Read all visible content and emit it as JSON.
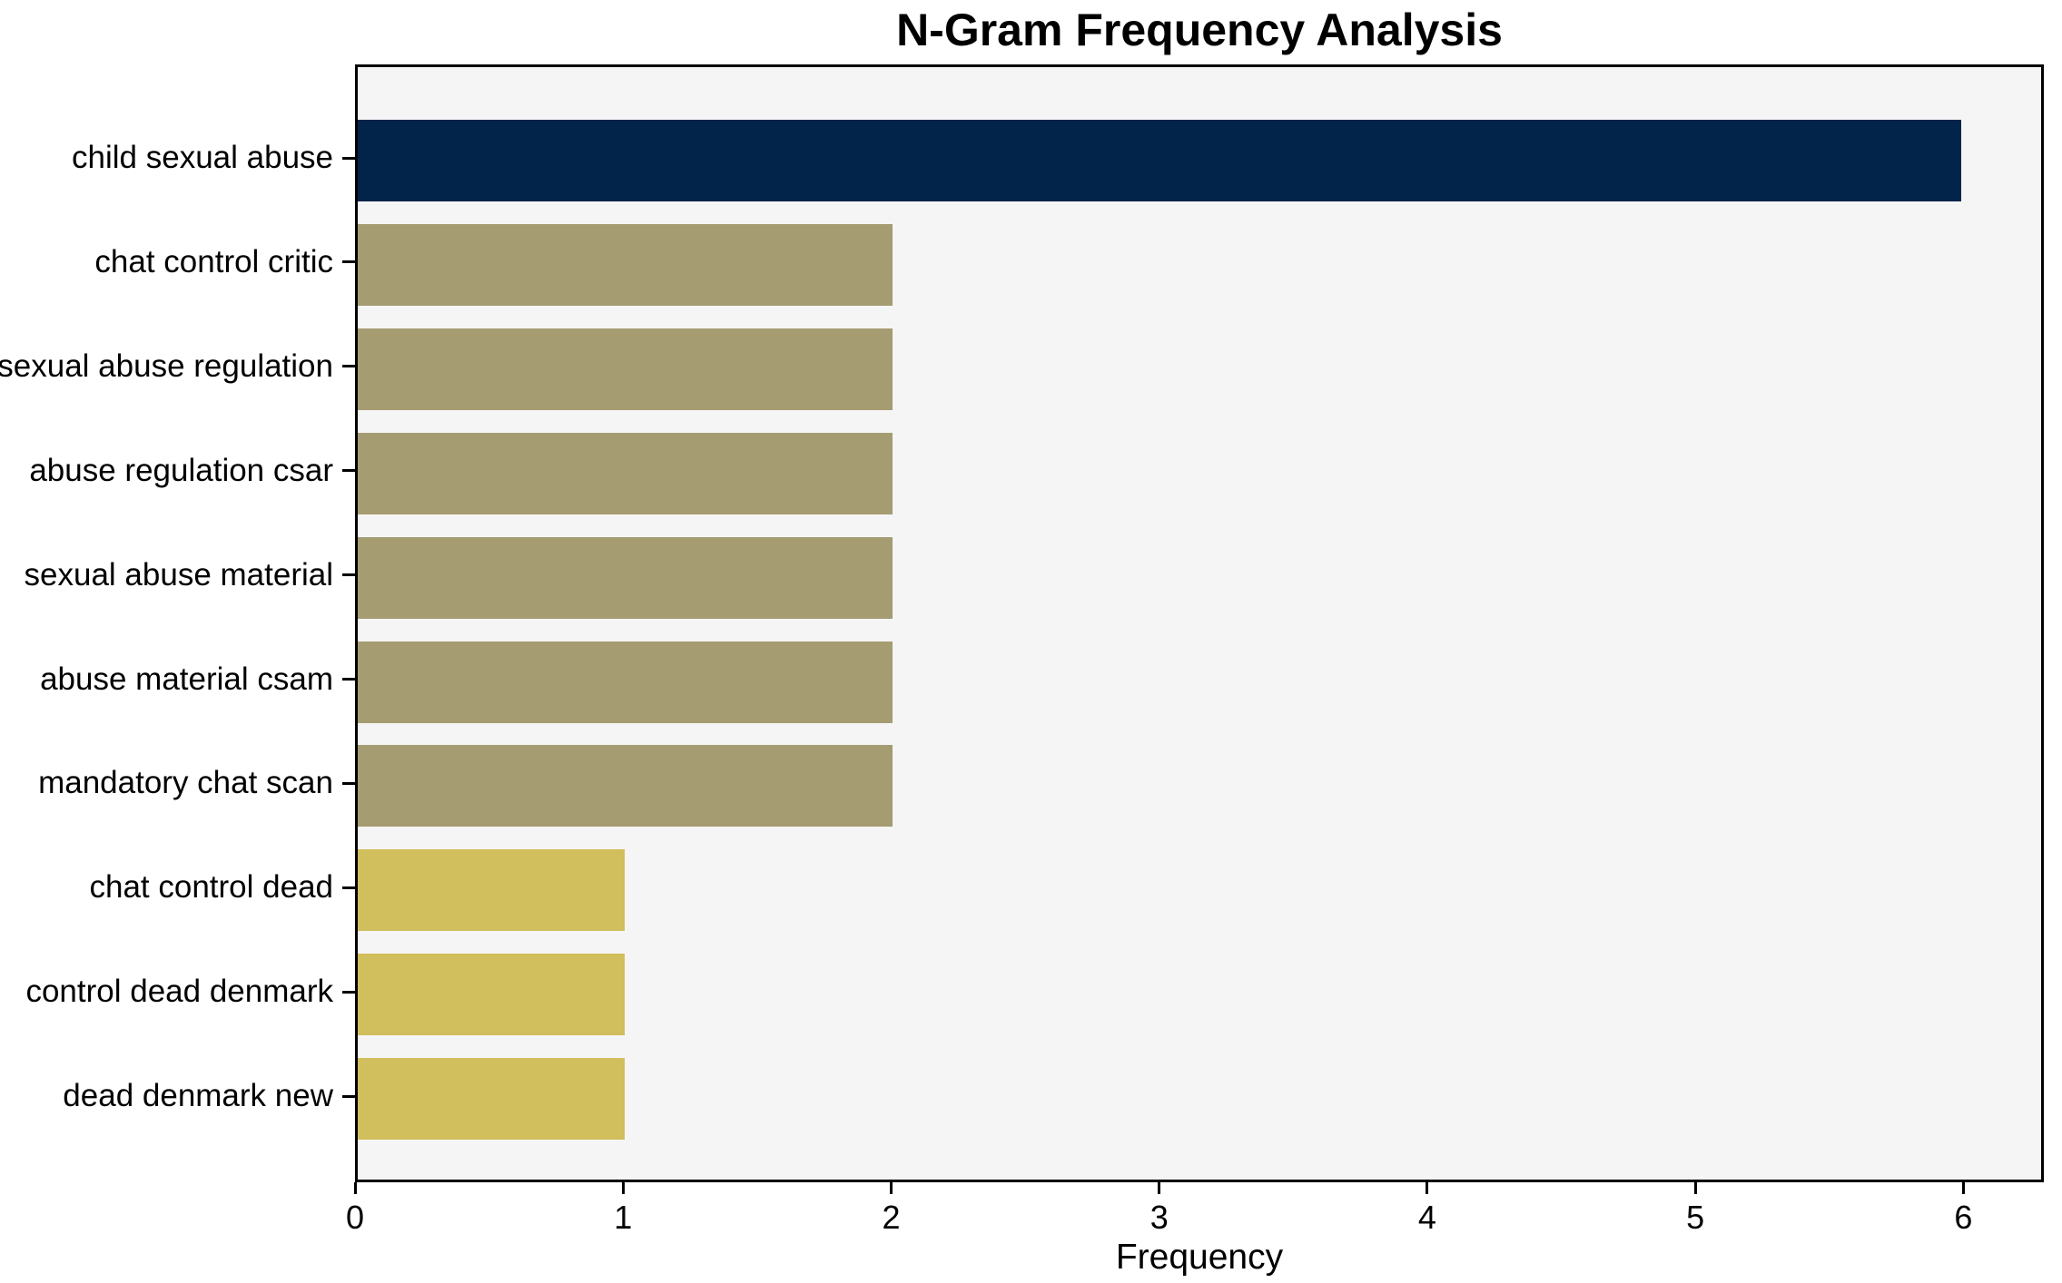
{
  "title": "N-Gram Frequency Analysis",
  "chart_data": {
    "type": "bar",
    "orientation": "horizontal",
    "title": "N-Gram Frequency Analysis",
    "xlabel": "Frequency",
    "ylabel": "",
    "categories": [
      "child sexual abuse",
      "chat control critic",
      "sexual abuse regulation",
      "abuse regulation csar",
      "sexual abuse material",
      "abuse material csam",
      "mandatory chat scan",
      "chat control dead",
      "control dead denmark",
      "dead denmark new"
    ],
    "values": [
      6,
      2,
      2,
      2,
      2,
      2,
      2,
      1,
      1,
      1
    ],
    "bar_colors": [
      "#02234a",
      "#a59c72",
      "#a59c72",
      "#a59c72",
      "#a59c72",
      "#a59c72",
      "#a59c72",
      "#d1be5c",
      "#d1be5c",
      "#d1be5c"
    ],
    "x_ticks": [
      0,
      1,
      2,
      3,
      4,
      5,
      6
    ],
    "xlim": [
      0,
      6.3
    ],
    "grid": false,
    "legend": "none",
    "plot_background": "#f5f5f5",
    "page_background": "#ffffff",
    "axis_color": "#000000",
    "text_color": "#000000"
  }
}
